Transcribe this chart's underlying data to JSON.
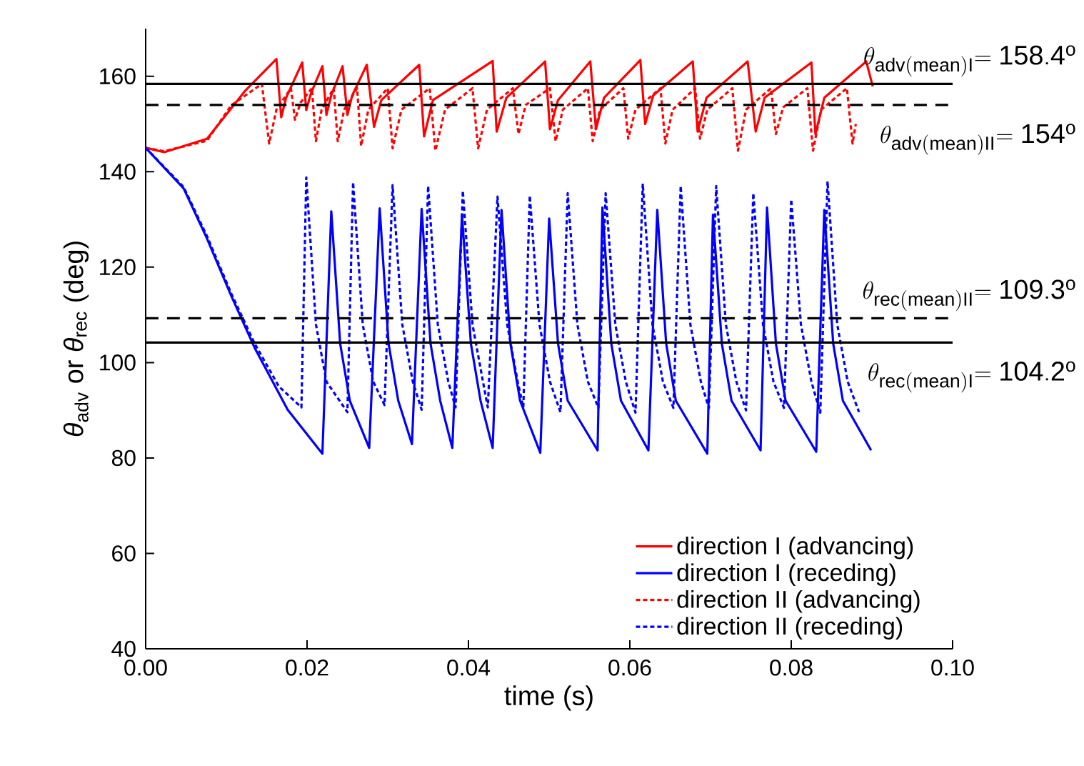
{
  "chart_data": {
    "type": "line",
    "xlabel": "time (s)",
    "ylabel": "*θ*$_{adv}$ or *θ*$_{rec}$ (deg)",
    "xlim": [
      0,
      0.1
    ],
    "ylim": [
      40,
      170
    ],
    "xticks": [
      {
        "value": 0,
        "label": "0.00"
      },
      {
        "value": 0.02,
        "label": "0.02"
      },
      {
        "value": 0.04,
        "label": "0.04"
      },
      {
        "value": 0.06,
        "label": "0.06"
      },
      {
        "value": 0.08,
        "label": "0.08"
      },
      {
        "value": 0.1,
        "label": "0.10"
      }
    ],
    "yticks": [
      40,
      60,
      80,
      100,
      120,
      140,
      160
    ],
    "legend": "bottom right",
    "series": [
      {
        "name": "direction I (advancing)",
        "color": "#ff0000",
        "line_style": "solid",
        "x": [
          0,
          0.0023,
          0.0076,
          0.0123,
          0.0162,
          0.0168,
          0.0174,
          0.0194,
          0.0199,
          0.0205,
          0.0219,
          0.0224,
          0.023,
          0.0244,
          0.025,
          0.0256,
          0.0274,
          0.0283,
          0.0292,
          0.0339,
          0.0345,
          0.0356,
          0.043,
          0.0435,
          0.0447,
          0.0495,
          0.0501,
          0.0511,
          0.0551,
          0.0558,
          0.0568,
          0.0613,
          0.0619,
          0.0629,
          0.0678,
          0.0684,
          0.0695,
          0.0746,
          0.0756,
          0.0767,
          0.0825,
          0.083,
          0.0841,
          0.0893,
          0.0901
        ],
        "values": [
          145,
          144.1,
          146.9,
          156.9,
          163.6,
          151.4,
          155.5,
          162.9,
          152.9,
          156.5,
          162.1,
          151.9,
          156,
          162.1,
          151.9,
          156,
          162.4,
          149.4,
          155,
          162.4,
          147.4,
          155,
          163.2,
          148.4,
          155.5,
          163.1,
          148.9,
          155,
          163.1,
          148.9,
          155.5,
          163.4,
          150,
          156,
          163.1,
          148.4,
          155.5,
          163.1,
          148.4,
          155.5,
          162.9,
          147.9,
          155.5,
          163.1,
          157.9
        ]
      },
      {
        "name": "direction I (receding)",
        "color": "#0000ff",
        "line_style": "solid",
        "x": [
          0,
          0.0047,
          0.0076,
          0.0106,
          0.0135,
          0.0176,
          0.0219,
          0.023,
          0.0241,
          0.0253,
          0.0277,
          0.029,
          0.0301,
          0.0313,
          0.033,
          0.0342,
          0.0353,
          0.0365,
          0.038,
          0.0392,
          0.0403,
          0.0415,
          0.043,
          0.0441,
          0.0452,
          0.0464,
          0.0489,
          0.05,
          0.0511,
          0.0523,
          0.056,
          0.0566,
          0.0577,
          0.0589,
          0.0623,
          0.0634,
          0.0645,
          0.0657,
          0.0696,
          0.0703,
          0.0714,
          0.0726,
          0.0762,
          0.077,
          0.0781,
          0.0793,
          0.0831,
          0.0841,
          0.0852,
          0.0864,
          0.0899
        ],
        "values": [
          145,
          136.5,
          126,
          114,
          103.1,
          90.1,
          80.9,
          131.7,
          104,
          92,
          82.1,
          132.3,
          104,
          92,
          82.9,
          132.2,
          104,
          92,
          82.1,
          131,
          104,
          92,
          82.1,
          132,
          104,
          92,
          81.1,
          130.2,
          104,
          92,
          81.6,
          132.5,
          104,
          92,
          81.6,
          132,
          104,
          92,
          80.9,
          131,
          104,
          92,
          81.6,
          132.5,
          104,
          92,
          81.3,
          132,
          104,
          92,
          81.6
        ]
      },
      {
        "name": "direction II (advancing)",
        "color": "#ff0000",
        "line_style": "dashed",
        "x": [
          0,
          0.0023,
          0.0076,
          0.0106,
          0.0144,
          0.0153,
          0.0162,
          0.018,
          0.0185,
          0.0192,
          0.0206,
          0.0211,
          0.0218,
          0.0233,
          0.0238,
          0.0246,
          0.0262,
          0.0267,
          0.0276,
          0.03,
          0.0306,
          0.0317,
          0.0352,
          0.0359,
          0.0371,
          0.0405,
          0.0412,
          0.0423,
          0.0455,
          0.0462,
          0.0471,
          0.0501,
          0.0508,
          0.0517,
          0.0548,
          0.0554,
          0.0563,
          0.0592,
          0.0598,
          0.0607,
          0.0638,
          0.0644,
          0.0653,
          0.0681,
          0.0687,
          0.0696,
          0.0727,
          0.0734,
          0.0744,
          0.0775,
          0.0781,
          0.079,
          0.082,
          0.0827,
          0.0837,
          0.0869,
          0.0876,
          0.088
        ],
        "values": [
          145,
          144.3,
          146.5,
          153.9,
          158.4,
          145.9,
          153,
          157.5,
          150.9,
          154.5,
          157.5,
          146.4,
          153,
          157.5,
          146.4,
          153,
          157.5,
          145.4,
          153,
          157.5,
          144.9,
          153,
          157.5,
          144.4,
          153,
          157.5,
          144.9,
          153,
          157.5,
          147.9,
          154,
          157.5,
          146.4,
          153,
          157.5,
          146.4,
          153,
          157.5,
          146.9,
          153,
          157.5,
          145.9,
          153,
          157.5,
          146.9,
          153,
          157.5,
          144.4,
          153,
          157.5,
          147.9,
          153.5,
          157.5,
          144.4,
          153,
          157.5,
          145.9,
          150
        ]
      },
      {
        "name": "direction II (receding)",
        "color": "#0000ff",
        "line_style": "dashed",
        "x": [
          0,
          0.0047,
          0.0076,
          0.0106,
          0.0135,
          0.0165,
          0.0193,
          0.0199,
          0.0211,
          0.0224,
          0.025,
          0.0257,
          0.0269,
          0.0282,
          0.0296,
          0.0306,
          0.0318,
          0.0331,
          0.0342,
          0.035,
          0.0362,
          0.0375,
          0.0384,
          0.0393,
          0.0405,
          0.0418,
          0.0424,
          0.0436,
          0.0448,
          0.0461,
          0.0468,
          0.0476,
          0.0488,
          0.0501,
          0.0514,
          0.0523,
          0.0535,
          0.0548,
          0.0561,
          0.057,
          0.0582,
          0.0595,
          0.0607,
          0.0616,
          0.0628,
          0.0641,
          0.0654,
          0.0663,
          0.0675,
          0.0688,
          0.0698,
          0.0707,
          0.0719,
          0.0732,
          0.0744,
          0.0753,
          0.0765,
          0.0778,
          0.0791,
          0.08,
          0.0812,
          0.0825,
          0.0836,
          0.0845,
          0.0857,
          0.087,
          0.0884
        ],
        "values": [
          145,
          136.8,
          126.5,
          114.5,
          104,
          95,
          90.6,
          138.8,
          108,
          96,
          89.6,
          137.8,
          108,
          96,
          91.1,
          137.2,
          108,
          96,
          90.1,
          137,
          108,
          96,
          90.6,
          136,
          108,
          96,
          90.6,
          134.8,
          108,
          96,
          90.6,
          135,
          108,
          96,
          89.6,
          135.5,
          108,
          96,
          90.5,
          135.5,
          108,
          96,
          89.5,
          137.5,
          108,
          96,
          90.5,
          137,
          108,
          96,
          90.5,
          137,
          108,
          96,
          90,
          135.5,
          108,
          96,
          90.5,
          134.2,
          108,
          96,
          89.5,
          138,
          108,
          96,
          89.6
        ]
      }
    ],
    "ref_lines": [
      {
        "axis": "y",
        "value": 158.4,
        "label": "\\theta_{\\mathrm{adv(mean)I}}\\mathrm{=158.4^{o}}",
        "color": "#000000",
        "line_style": "solid"
      },
      {
        "axis": "y",
        "value": 154,
        "label": "\\theta_{\\mathrm{adv(mean)II}}\\mathrm{=154^{o}}",
        "color": "#000000",
        "line_style": "dashed"
      },
      {
        "axis": "y",
        "value": 109.3,
        "label": "\\theta_{\\mathrm{rec(mean)II}}\\mathrm{=109.3^{o}}",
        "color": "#000000",
        "line_style": "dashed"
      },
      {
        "axis": "y",
        "value": 104.2,
        "label": "\\theta_{\\mathrm{rec(mean)I}}\\mathrm{=104.2^{o}}",
        "color": "#000000",
        "line_style": "solid"
      }
    ]
  }
}
